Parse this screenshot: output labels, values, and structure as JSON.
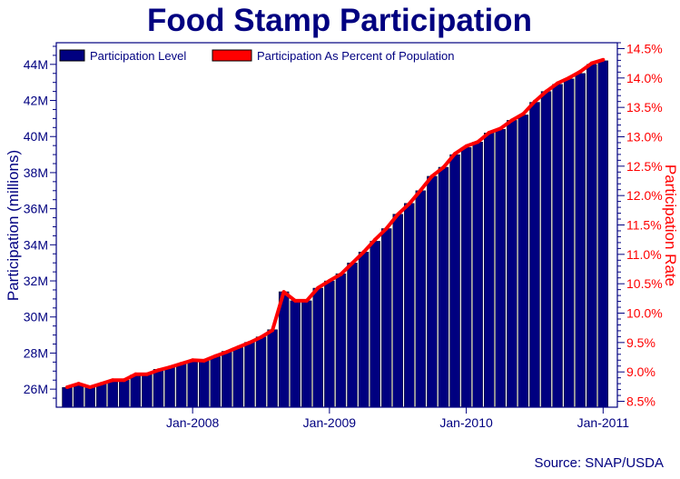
{
  "chart_data": {
    "type": "bar+line",
    "title": "Food Stamp Participation",
    "ylabel": "Participation (millions)",
    "y2label": "Participation Rate",
    "source": "Source: SNAP/USDA",
    "ylim": [
      25,
      45.2
    ],
    "y2lim": [
      8.4,
      14.6
    ],
    "yticks": [
      "26M",
      "28M",
      "30M",
      "32M",
      "34M",
      "36M",
      "38M",
      "40M",
      "42M",
      "44M"
    ],
    "ytick_values": [
      26,
      28,
      30,
      32,
      34,
      36,
      38,
      40,
      42,
      44
    ],
    "y2ticks": [
      "8.5%",
      "9.0%",
      "9.5%",
      "10.0%",
      "10.5%",
      "11.0%",
      "11.5%",
      "12.0%",
      "12.5%",
      "13.0%",
      "13.5%",
      "14.0%",
      "14.5%"
    ],
    "y2tick_values": [
      8.5,
      9.0,
      9.5,
      10.0,
      10.5,
      11.0,
      11.5,
      12.0,
      12.5,
      13.0,
      13.5,
      14.0,
      14.5
    ],
    "xticks": [
      "Jan-2008",
      "Jan-2009",
      "Jan-2010",
      "Jan-2011"
    ],
    "xtick_months": [
      "2008-01",
      "2009-01",
      "2010-01",
      "2011-01"
    ],
    "x": [
      "2007-02",
      "2007-03",
      "2007-04",
      "2007-05",
      "2007-06",
      "2007-07",
      "2007-08",
      "2007-09",
      "2007-10",
      "2007-11",
      "2007-12",
      "2008-01",
      "2008-02",
      "2008-03",
      "2008-04",
      "2008-05",
      "2008-06",
      "2008-07",
      "2008-08",
      "2008-09",
      "2008-10",
      "2008-11",
      "2008-12",
      "2009-01",
      "2009-02",
      "2009-03",
      "2009-04",
      "2009-05",
      "2009-06",
      "2009-07",
      "2009-08",
      "2009-09",
      "2009-10",
      "2009-11",
      "2009-12",
      "2010-01",
      "2010-02",
      "2010-03",
      "2010-04",
      "2010-05",
      "2010-06",
      "2010-07",
      "2010-08",
      "2010-09",
      "2010-10",
      "2010-11",
      "2010-12",
      "2011-01"
    ],
    "series": [
      {
        "name": "Participation Level",
        "type": "bar",
        "axis": "left",
        "color": "#000080",
        "values": [
          26.1,
          26.3,
          26.1,
          26.3,
          26.5,
          26.5,
          26.8,
          26.8,
          27.1,
          27.2,
          27.4,
          27.6,
          27.6,
          27.8,
          28.1,
          28.3,
          28.6,
          28.9,
          29.3,
          31.4,
          30.9,
          30.9,
          31.6,
          32.0,
          32.4,
          33.0,
          33.6,
          34.2,
          34.9,
          35.7,
          36.3,
          37.0,
          37.8,
          38.3,
          39.0,
          39.4,
          39.7,
          40.2,
          40.4,
          40.9,
          41.2,
          41.9,
          42.5,
          42.9,
          43.2,
          43.5,
          44.0,
          44.2
        ]
      },
      {
        "name": "Participation As Percent of Population",
        "type": "line",
        "axis": "right",
        "color": "#ff0000",
        "values": [
          8.74,
          8.8,
          8.74,
          8.8,
          8.86,
          8.86,
          8.96,
          8.96,
          9.03,
          9.08,
          9.14,
          9.2,
          9.19,
          9.27,
          9.34,
          9.42,
          9.5,
          9.59,
          9.71,
          10.36,
          10.21,
          10.21,
          10.43,
          10.55,
          10.66,
          10.85,
          11.04,
          11.25,
          11.44,
          11.68,
          11.86,
          12.09,
          12.33,
          12.48,
          12.71,
          12.84,
          12.91,
          13.07,
          13.14,
          13.28,
          13.39,
          13.6,
          13.77,
          13.91,
          14.0,
          14.11,
          14.25,
          14.31
        ]
      }
    ],
    "legend": "top-left",
    "grid": false,
    "axis_color": "#000080",
    "right_axis_color": "#ff0000"
  }
}
